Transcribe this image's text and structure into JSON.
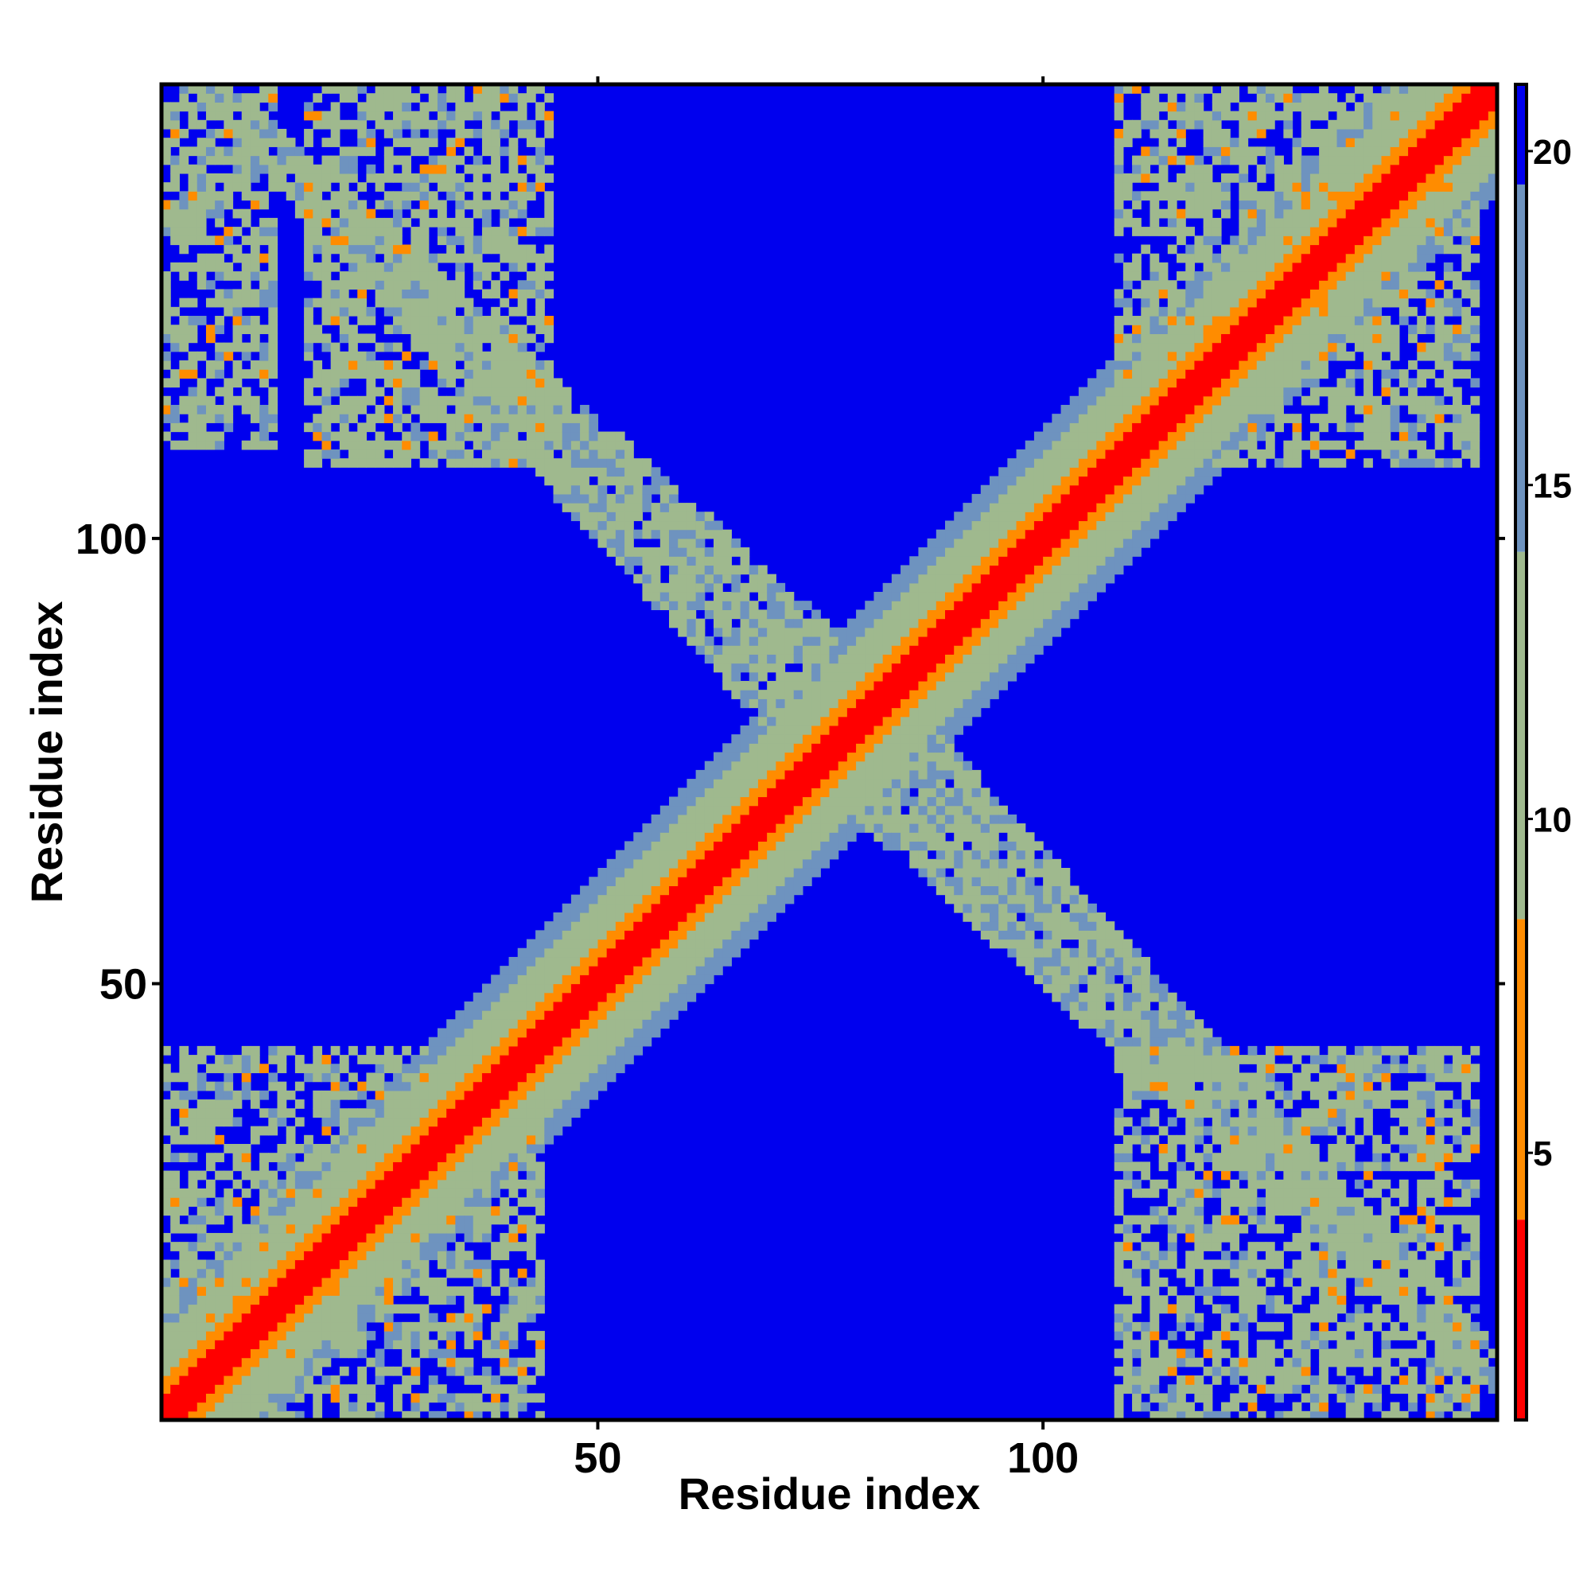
{
  "chart_data": {
    "type": "heatmap",
    "title": "",
    "xlabel": "Residue index",
    "ylabel": "Residue index",
    "xlim": [
      1,
      150
    ],
    "ylim": [
      1,
      150
    ],
    "x_ticks": [
      50,
      100
    ],
    "y_ticks": [
      50,
      100
    ],
    "x_tick_labels": [
      "50",
      "100"
    ],
    "y_tick_labels": [
      "50",
      "100"
    ],
    "colorbar": {
      "range": [
        1,
        21
      ],
      "ticks": [
        5,
        10,
        15,
        20
      ],
      "tick_labels": [
        "5",
        "10",
        "15",
        "20"
      ],
      "colors": [
        "#ff0000",
        "#ff8c00",
        "#9fb98e",
        "#4f7fbf",
        "#0000ee"
      ]
    },
    "features": {
      "diagonal_band_halfwidth_residues": 12,
      "off_diagonal_cross": {
        "center": [
          78,
          78
        ],
        "extent": [
          53,
          105
        ]
      },
      "contact_regions": [
        {
          "x": [
            1,
            43
          ],
          "y": [
            1,
            42
          ]
        },
        {
          "x": [
            108,
            148
          ],
          "y": [
            1,
            42
          ]
        },
        {
          "x": [
            1,
            13
          ],
          "y": [
            110,
            150
          ]
        },
        {
          "x": [
            17,
            44
          ],
          "y": [
            108,
            150
          ]
        },
        {
          "x": [
            108,
            148
          ],
          "y": [
            108,
            150
          ]
        }
      ],
      "background_value": 21
    }
  }
}
